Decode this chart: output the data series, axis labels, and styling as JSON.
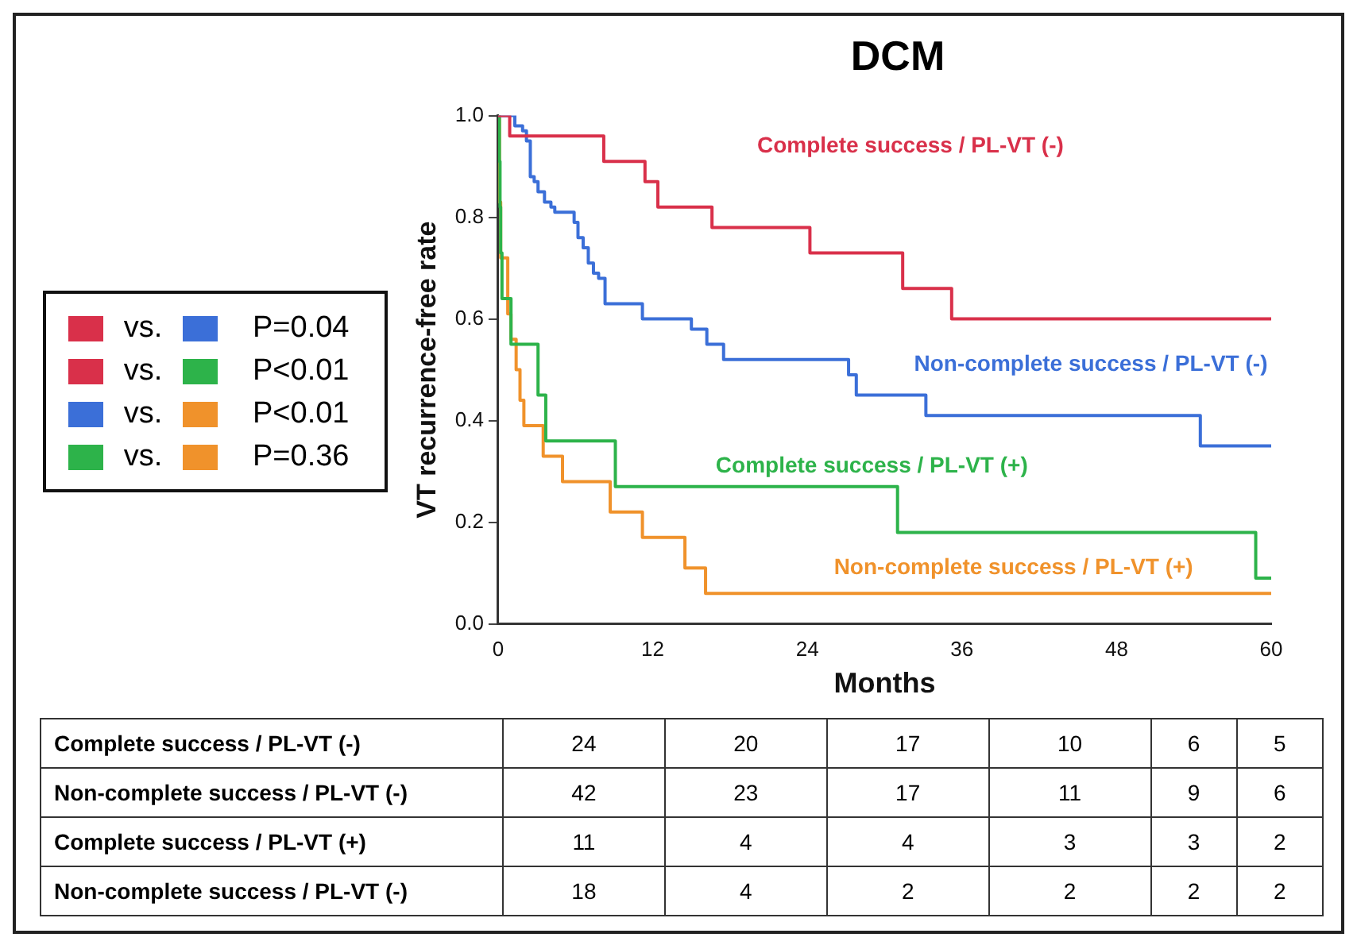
{
  "chart_data": {
    "type": "step",
    "title": "DCM",
    "xlabel": "Months",
    "ylabel": "VT recurrence-free rate",
    "xlim": [
      0,
      60
    ],
    "xticks": [
      0,
      12,
      24,
      36,
      48,
      60
    ],
    "ylim": [
      0,
      1
    ],
    "yticks": [
      {
        "value": 0,
        "label": "0.0"
      },
      {
        "value": 0.2,
        "label": "0.2"
      },
      {
        "value": 0.4,
        "label": "0.4"
      },
      {
        "value": 0.6,
        "label": "0.6"
      },
      {
        "value": 0.8,
        "label": "0.8"
      },
      {
        "value": 1,
        "label": "1.0"
      }
    ],
    "grid": false,
    "legend": false,
    "marker": "none",
    "line_style": "solid",
    "series": [
      {
        "name": "Complete success / PL-VT (-)",
        "color": "#d9304a",
        "x": [
          0,
          0.9,
          8.2,
          11.4,
          12.4,
          16.6,
          24.2,
          31.4,
          35.2,
          60
        ],
        "values": [
          1,
          0.96,
          0.91,
          0.87,
          0.82,
          0.78,
          0.73,
          0.66,
          0.6,
          0.6
        ]
      },
      {
        "name": "Non-complete success / PL-VT (-)",
        "color": "#3b6fd8",
        "x": [
          0,
          1.3,
          1.9,
          2.2,
          2.5,
          2.8,
          3.1,
          3.6,
          4.1,
          4.4,
          5.9,
          6.2,
          6.6,
          7.0,
          7.4,
          7.8,
          8.3,
          11.2,
          15.0,
          16.2,
          17.5,
          27.2,
          27.8,
          33.2,
          54.5,
          60
        ],
        "values": [
          1,
          0.98,
          0.97,
          0.95,
          0.88,
          0.87,
          0.85,
          0.83,
          0.82,
          0.81,
          0.79,
          0.76,
          0.74,
          0.71,
          0.69,
          0.68,
          0.63,
          0.6,
          0.58,
          0.55,
          0.52,
          0.49,
          0.45,
          0.41,
          0.35,
          0.35
        ]
      },
      {
        "name": "Complete success / PL-VT (+)",
        "color": "#2db34a",
        "x": [
          0,
          0.1,
          0.15,
          0.2,
          0.3,
          1.0,
          3.1,
          3.7,
          9.1,
          31.0,
          58.8,
          60
        ],
        "values": [
          1,
          0.91,
          0.82,
          0.73,
          0.64,
          0.55,
          0.45,
          0.36,
          0.27,
          0.18,
          0.09,
          0.09
        ]
      },
      {
        "name": "Non-complete success / PL-VT (+)",
        "color": "#f0922b",
        "x": [
          0,
          0.1,
          0.2,
          0.75,
          1.0,
          1.4,
          1.7,
          2.0,
          3.5,
          5.0,
          8.7,
          11.2,
          14.5,
          16.1,
          60
        ],
        "values": [
          1,
          0.83,
          0.72,
          0.61,
          0.56,
          0.5,
          0.44,
          0.39,
          0.33,
          0.28,
          0.22,
          0.17,
          0.11,
          0.06,
          0.06
        ]
      }
    ],
    "annotations": [
      "vs.",
      "P=0.04",
      "vs.",
      "P<0.01",
      "vs.",
      "P<0.01",
      "vs.",
      "P=0.36",
      "Complete success / PL-VT (-)",
      "24",
      "20",
      "17",
      "10",
      "6",
      "5",
      "Non-complete success / PL-VT (-)",
      "42",
      "23",
      "17",
      "11",
      "9",
      "6",
      "Complete success / PL-VT (+)",
      "11",
      "4",
      "4",
      "3",
      "3",
      "2",
      "Non-complete success / PL-VT (-)",
      "18",
      "4",
      "2",
      "2",
      "2",
      "2"
    ]
  }
}
